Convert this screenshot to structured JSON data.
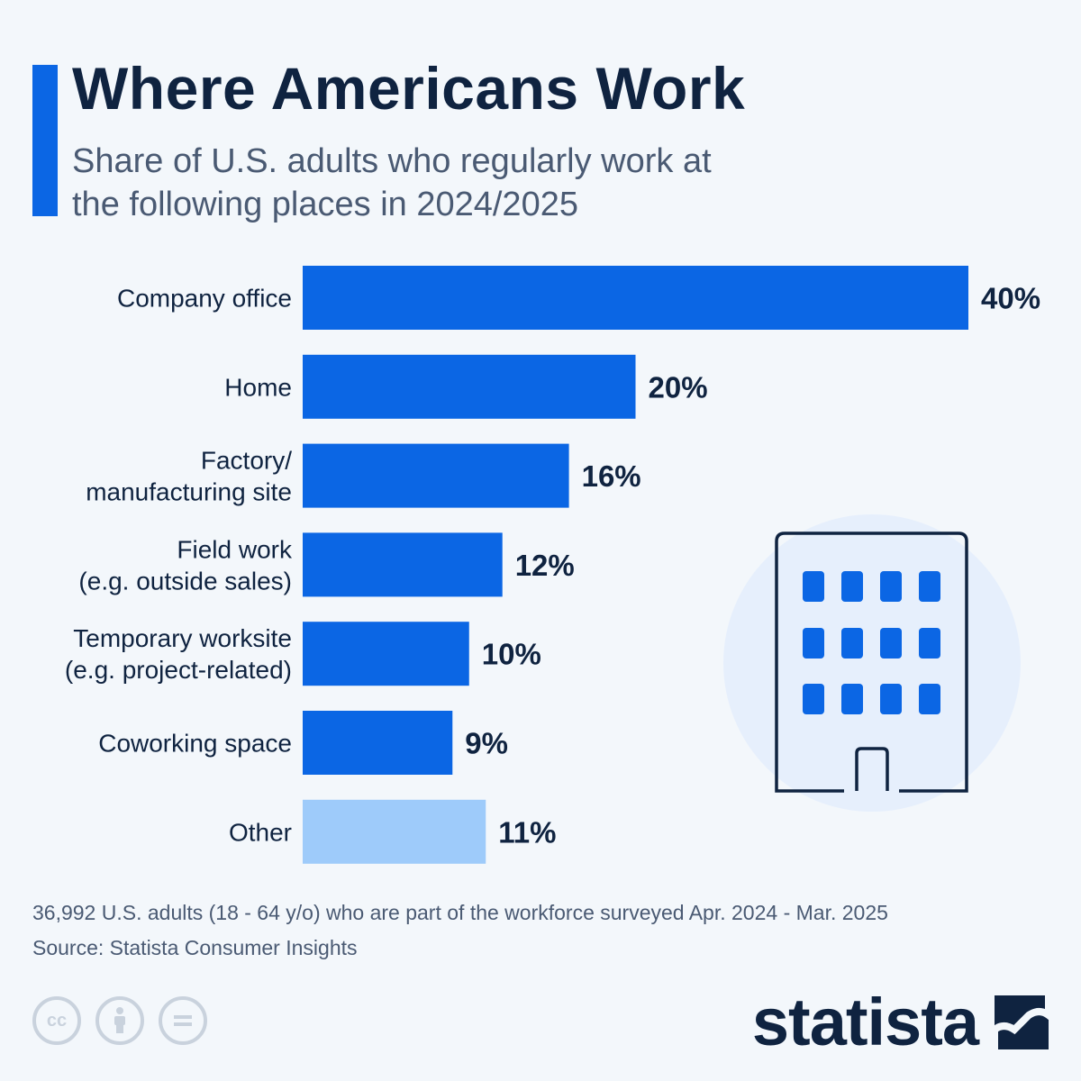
{
  "header": {
    "title": "Where Americans Work",
    "subtitle": "Share of U.S. adults who regularly work at the following places in 2024/2025"
  },
  "chart_data": {
    "type": "bar",
    "orientation": "horizontal",
    "categories": [
      [
        "Company office"
      ],
      [
        "Home"
      ],
      [
        "Factory/",
        "manufacturing site"
      ],
      [
        "Field work",
        "(e.g. outside sales)"
      ],
      [
        "Temporary worksite",
        "(e.g. project-related)"
      ],
      [
        "Coworking space"
      ],
      [
        "Other"
      ]
    ],
    "values": [
      40,
      20,
      16,
      12,
      10,
      9,
      11
    ],
    "value_labels": [
      "40%",
      "20%",
      "16%",
      "12%",
      "10%",
      "9%",
      "11%"
    ],
    "colors": [
      "#0b66e4",
      "#0b66e4",
      "#0b66e4",
      "#0b66e4",
      "#0b66e4",
      "#0b66e4",
      "#9ecbfa"
    ],
    "xlim": [
      0,
      40
    ],
    "grid": false
  },
  "footer": {
    "note": "36,992 U.S. adults (18 - 64 y/o) who are part of the workforce surveyed Apr. 2024 - Mar. 2025",
    "source": "Source: Statista Consumer Insights",
    "license_icons": [
      "cc-icon",
      "attribution-icon",
      "no-derivatives-icon"
    ],
    "cc_text": "cc",
    "brand": "statista"
  },
  "colors": {
    "accent": "#0b66e4",
    "accent_light": "#9ecbfa",
    "text_dark": "#0f2340",
    "text_muted": "#4a5a73"
  },
  "illustration": "office-building-icon"
}
